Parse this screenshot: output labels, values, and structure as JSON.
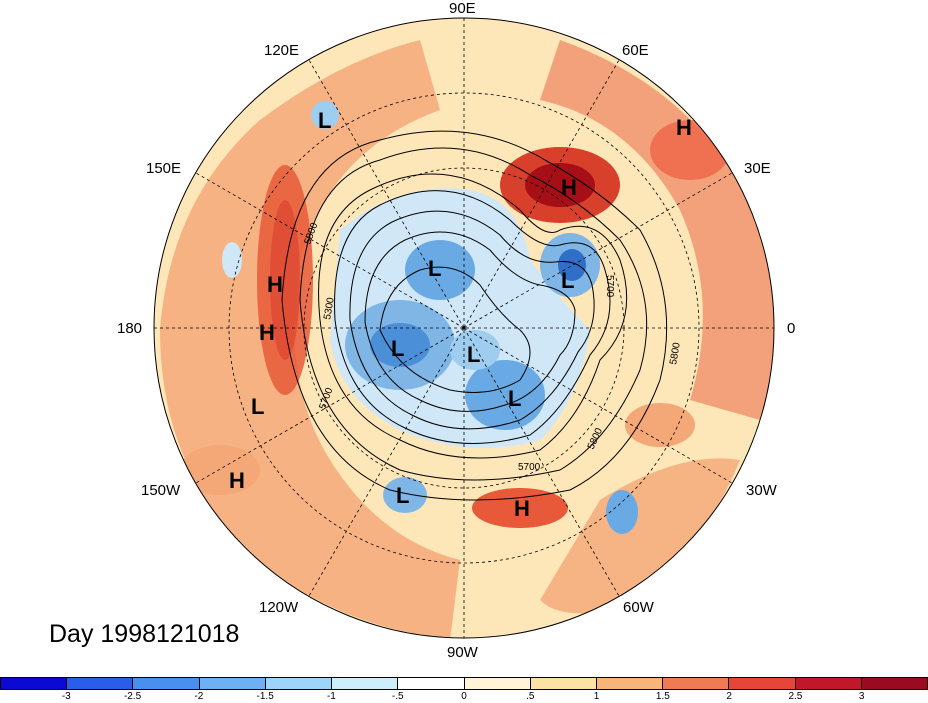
{
  "map": {
    "projection": "north-polar-stereographic",
    "lon_labels": {
      "e90": "90E",
      "e120": "120E",
      "e60": "60E",
      "e150": "150E",
      "e30": "30E",
      "l180": "180",
      "l0": "0",
      "w150": "150W",
      "w30": "30W",
      "w120": "120W",
      "w60": "60W",
      "w90": "90W"
    },
    "contour_labels": [
      "5800",
      "5300",
      "5700",
      "5800",
      "5700",
      "5800",
      "5700"
    ],
    "pressure_centers": [
      {
        "label": "L"
      },
      {
        "label": "H"
      },
      {
        "label": "H"
      },
      {
        "label": "L"
      },
      {
        "label": "L"
      },
      {
        "label": "H"
      },
      {
        "label": "H"
      },
      {
        "label": "L"
      },
      {
        "label": "L"
      },
      {
        "label": "L"
      },
      {
        "label": "L"
      },
      {
        "label": "H"
      },
      {
        "label": "L"
      },
      {
        "label": "H"
      }
    ],
    "colors": {
      "deep_warm": "#a50f15",
      "warm": "#ef6548",
      "light_warm": "#fdd9a0",
      "neutral": "#fff5d6",
      "cool": "#9ecae1",
      "deep_cool": "#3182bd"
    }
  },
  "title": {
    "day": "Day 1998121018"
  },
  "colorbar": {
    "ticks": [
      "-3",
      "-2.5",
      "-2",
      "-1.5",
      "-1",
      "-.5",
      "0",
      ".5",
      "1",
      "1.5",
      "2",
      "2.5",
      "3"
    ],
    "colors": [
      "#0a0ad4",
      "#2a5ee8",
      "#4a8ff0",
      "#6fb0f4",
      "#9dd4f8",
      "#cdeefb",
      "#ffffff",
      "#fff5d6",
      "#fde2a6",
      "#f9b47a",
      "#f07a56",
      "#e8453a",
      "#c0182a",
      "#9a0b20"
    ]
  }
}
